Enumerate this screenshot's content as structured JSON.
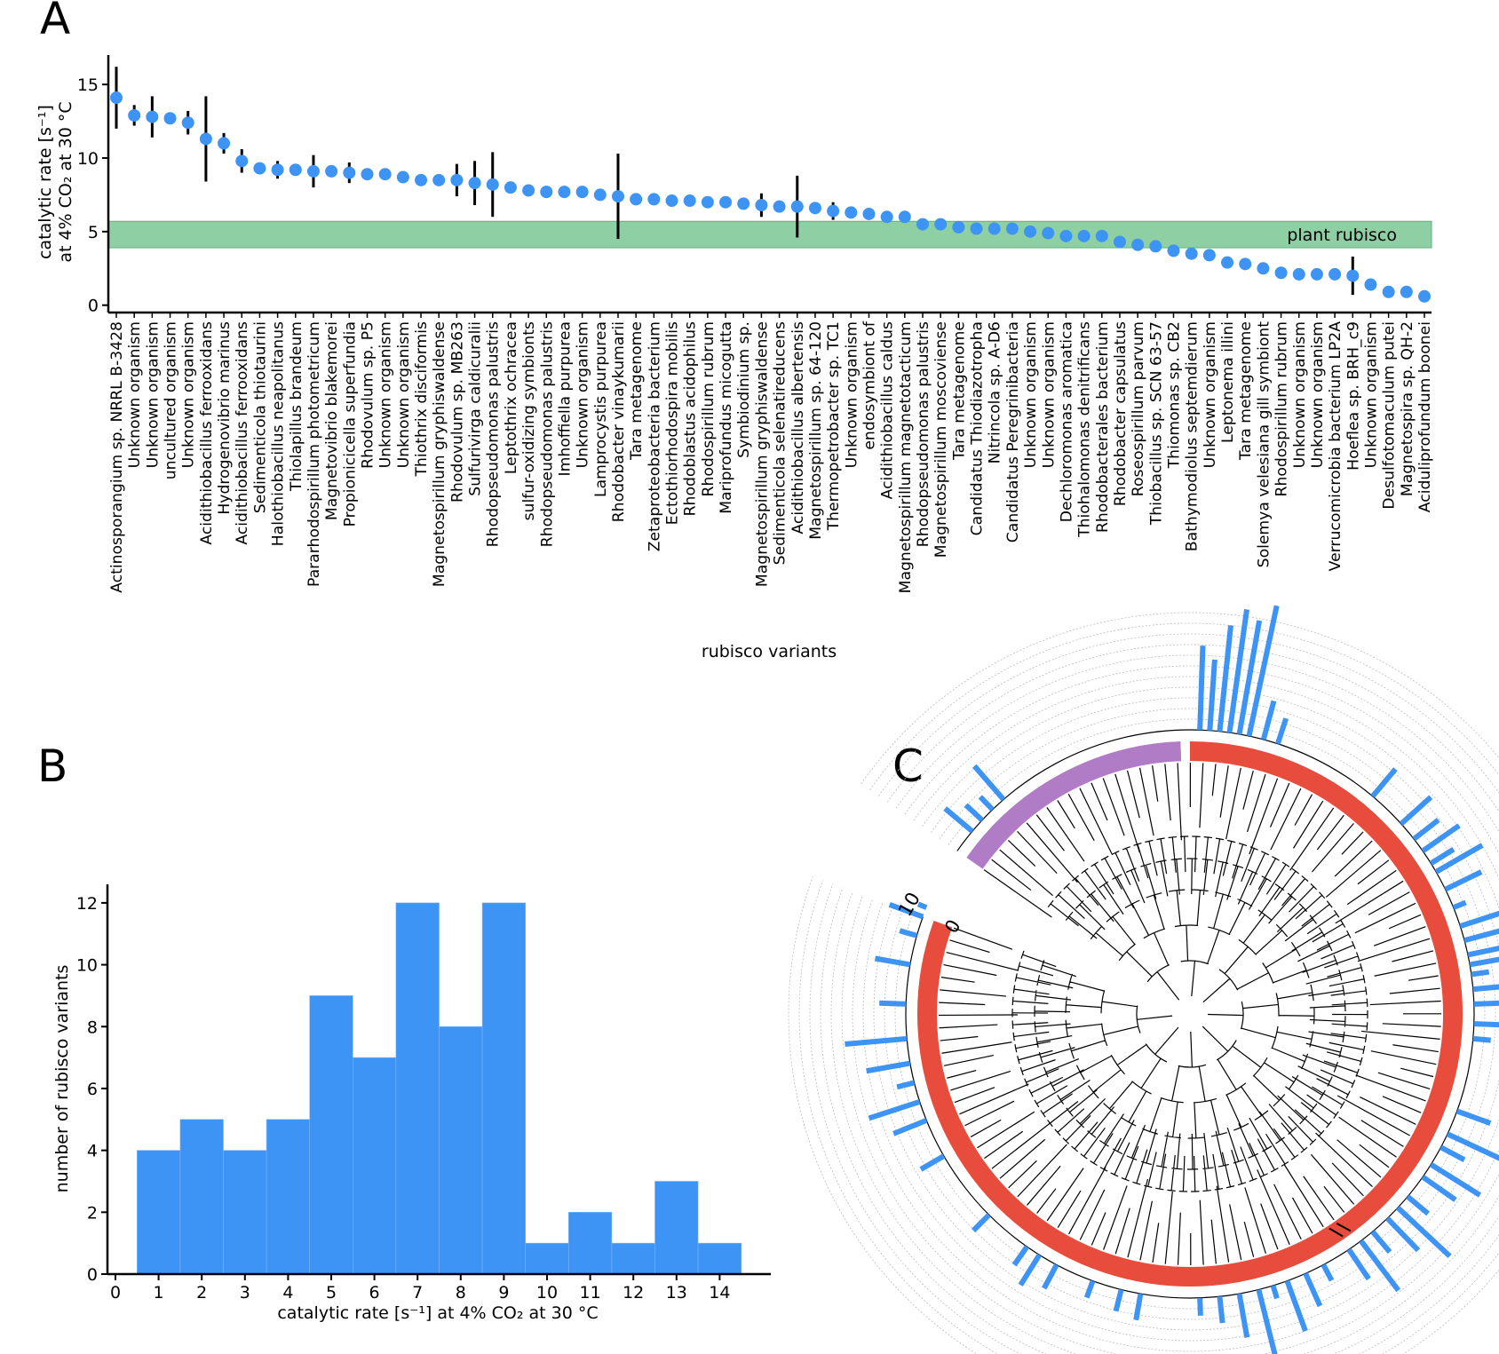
{
  "panels": {
    "A": "A",
    "B": "B",
    "C": "C"
  },
  "colors": {
    "marker": "#3d94f5",
    "band": "#8ecfa4",
    "bar": "#3d94f5",
    "ring_main": "#e74c3c",
    "ring_alt": "#b07cc6"
  },
  "chart_data": [
    {
      "type": "scatter",
      "panel": "A",
      "xlabel": "rubisco variants",
      "ylabel_line1": "catalytic rate [s⁻¹]",
      "ylabel_line2": "at 4% CO₂ at 30 °C",
      "ylim": [
        -0.5,
        17
      ],
      "yticks": [
        0,
        5,
        10,
        15
      ],
      "band": {
        "from": 3.9,
        "to": 5.7,
        "label": "plant rubisco"
      },
      "categories": [
        "Actinosporangium sp. NRRL B-3428",
        "Unknown organism",
        "Unknown organism",
        "uncultured organism",
        "Unknown organism",
        "Acidithiobacillus ferrooxidans",
        "Hydrogenovibrio marinus",
        "Acidithiobacillus ferrooxidans",
        "Sedimenticola thiotaurini",
        "Halothiobacillus neapolitanus",
        "Thiolapillus brandeum",
        "Pararhodospirillum photometricum",
        "Magnetovibrio blakemorei",
        "Propionicicella superfundia",
        "Rhodovulum sp. P5",
        "Unknown organism",
        "Unknown organism",
        "Thiothrix disciformis",
        "Magnetospirillum gryphiswaldense",
        "Rhodovulum sp. MB263",
        "Sulfurivirga caldicuralii",
        "Rhodopseudomonas palustris",
        "Leptothrix ochracea",
        "sulfur-oxidizing symbionts",
        "Rhodopseudomonas palustris",
        "Imhoffiella purpurea",
        "Unknown organism",
        "Lamprocystis purpurea",
        "Rhodobacter vinaykumarii",
        "Tara metagenome",
        "Zetaproteobacteria bacterium",
        "Ectothiorhodospira mobilis",
        "Rhodoblastus acidophilus",
        "Rhodospirillum rubrum",
        "Mariprofundus micogutta",
        "Symbiodinium sp.",
        "Magnetospirillum gryphiswaldense",
        "Sedimenticola selenatireducens",
        "Acidithiobacillus albertensis",
        "Magnetospirillum sp. 64-120",
        "Thermopetrobacter sp. TC1",
        "Unknown organism",
        "endosymbiont of",
        "Acidithiobacillus caldus",
        "Magnetospirillum magnetotacticum",
        "Rhodopseudomonas palustris",
        "Magnetospirillum moscoviense",
        "Tara metagenome",
        "Candidatus Thiodiazotropha",
        "Nitrincola sp. A-D6",
        "Candidatus Peregrinibacteria",
        "Unknown organism",
        "Unknown organism",
        "Dechloromonas aromatica",
        "Thiohalomonas denitrificans",
        "Rhodobacterales bacterium",
        "Rhodobacter capsulatus",
        "Roseospirillum parvum",
        "Thiobacillus sp. SCN 63-57",
        "Thiomonas sp. CB2",
        "Bathymodiolus septemdierum",
        "Unknown organism",
        "Leptonema illini",
        "Tara metagenome",
        "Solemya velesiana gill symbiont",
        "Rhodospirillum rubrum",
        "Unknown organism",
        "Unknown organism",
        "Verrucomicrobia bacterium LP2A",
        "Hoeflea sp. BRH_c9",
        "Unknown organism",
        "Desulfotomaculum putei",
        "Magnetospira sp. QH-2",
        "Aciduliprofundum boonei"
      ],
      "values": [
        14.1,
        12.9,
        12.8,
        12.7,
        12.4,
        11.3,
        11.0,
        9.8,
        9.3,
        9.2,
        9.2,
        9.1,
        9.1,
        9.0,
        8.9,
        8.9,
        8.7,
        8.5,
        8.5,
        8.5,
        8.3,
        8.2,
        8.0,
        7.8,
        7.7,
        7.7,
        7.7,
        7.5,
        7.4,
        7.2,
        7.2,
        7.1,
        7.1,
        7.0,
        7.0,
        6.9,
        6.8,
        6.7,
        6.7,
        6.6,
        6.4,
        6.3,
        6.2,
        6.0,
        6.0,
        5.5,
        5.5,
        5.3,
        5.2,
        5.2,
        5.2,
        5.0,
        4.9,
        4.7,
        4.7,
        4.7,
        4.3,
        4.1,
        4.0,
        3.7,
        3.5,
        3.4,
        2.9,
        2.8,
        2.5,
        2.2,
        2.1,
        2.1,
        2.1,
        2.0,
        1.4,
        0.9,
        0.9,
        0.6
      ],
      "errors": [
        [
          0,
          2.1
        ],
        [
          1,
          0.7
        ],
        [
          2,
          1.4
        ],
        [
          4,
          0.8
        ],
        [
          5,
          2.9
        ],
        [
          6,
          0.7
        ],
        [
          7,
          0.8
        ],
        [
          9,
          0.6
        ],
        [
          11,
          1.1
        ],
        [
          13,
          0.7
        ],
        [
          19,
          1.1
        ],
        [
          20,
          1.5
        ],
        [
          21,
          2.2
        ],
        [
          28,
          2.9
        ],
        [
          36,
          0.8
        ],
        [
          38,
          2.1
        ],
        [
          40,
          0.6
        ],
        [
          69,
          1.3
        ]
      ]
    },
    {
      "type": "bar",
      "panel": "B",
      "xlabel": "catalytic rate [s⁻¹] at 4% CO₂ at 30 °C",
      "ylabel": "number of rubisco variants",
      "xticks": [
        0,
        1,
        2,
        3,
        4,
        5,
        6,
        7,
        8,
        9,
        10,
        11,
        12,
        13,
        14
      ],
      "yticks": [
        0,
        2,
        4,
        6,
        8,
        10,
        12
      ],
      "ylim": [
        0,
        12.6
      ],
      "categories": [
        1,
        2,
        3,
        4,
        5,
        6,
        7,
        8,
        9,
        10,
        11,
        12,
        13,
        14
      ],
      "values": [
        4,
        5,
        4,
        5,
        9,
        7,
        12,
        8,
        12,
        1,
        2,
        1,
        3,
        1
      ]
    },
    {
      "type": "other",
      "panel": "C",
      "description_labels": [
        "0",
        "10"
      ]
    }
  ]
}
